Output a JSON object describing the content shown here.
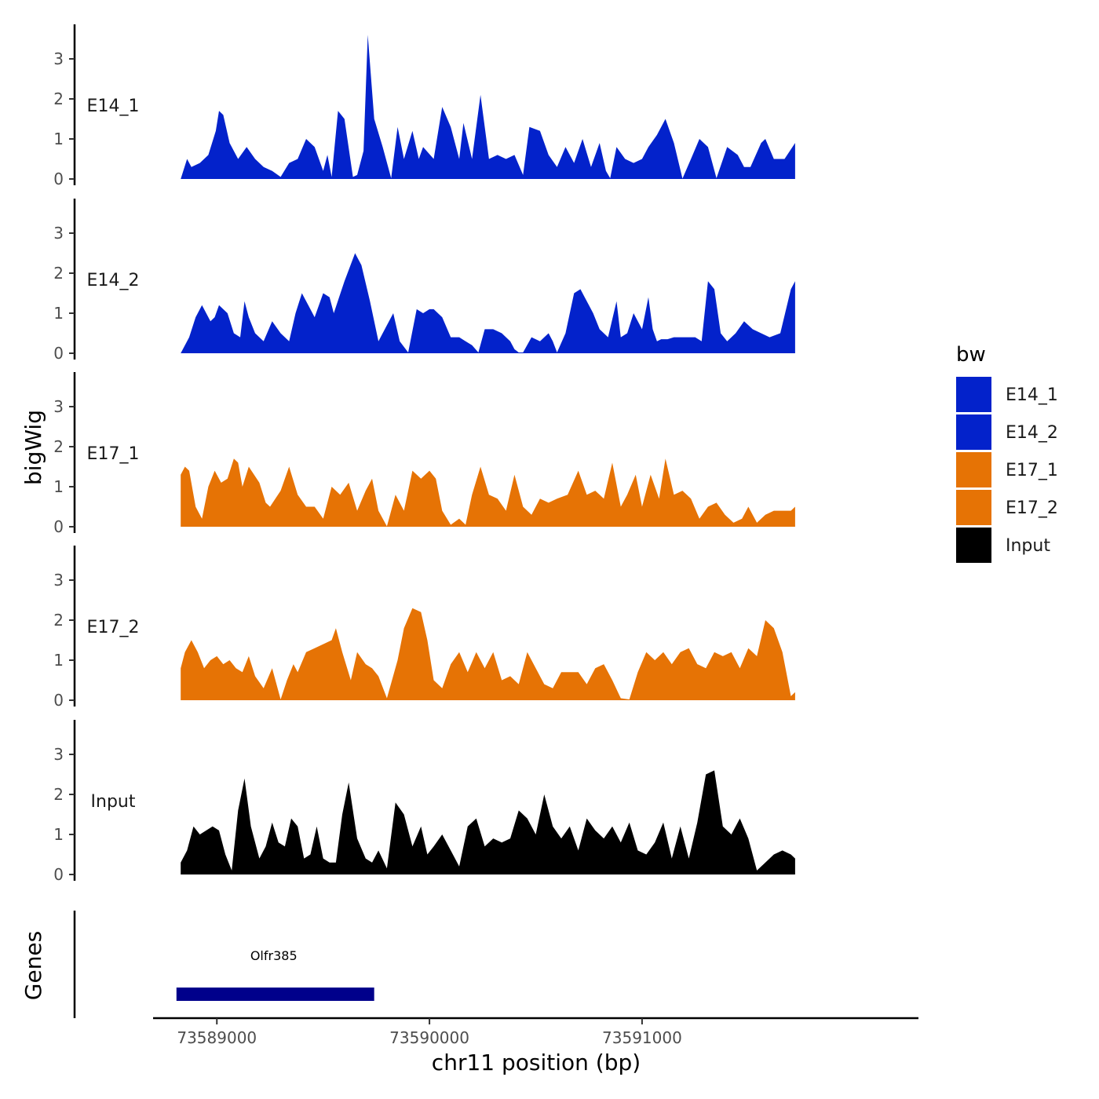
{
  "chart_data": {
    "type": "area",
    "title": "",
    "xlabel": "chr11 position (bp)",
    "ylabel": "bigWig",
    "gene_panel_label": "Genes",
    "xlim": [
      73588700,
      73592300
    ],
    "ylim": [
      0,
      3.8
    ],
    "x_ticks": [
      73589000,
      73590000,
      73591000
    ],
    "x_tick_labels": [
      "73589000",
      "73590000",
      "73591000"
    ],
    "y_ticks": [
      0,
      1,
      2,
      3
    ],
    "y_tick_labels": [
      "0",
      "1",
      "2",
      "3"
    ],
    "legend": {
      "title": "bw",
      "entries": [
        {
          "label": "E14_1",
          "color": "#0322cb"
        },
        {
          "label": "E14_2",
          "color": "#0322cb"
        },
        {
          "label": "E17_1",
          "color": "#e67305"
        },
        {
          "label": "E17_2",
          "color": "#e67305"
        },
        {
          "label": "Input",
          "color": "#000000"
        }
      ]
    },
    "series": [
      {
        "name": "E14_1",
        "color": "#0322cb",
        "x": [
          73588830,
          73588860,
          73588880,
          73588920,
          73588960,
          73588995,
          73589010,
          73589030,
          73589060,
          73589100,
          73589140,
          73589180,
          73589220,
          73589260,
          73589300,
          73589340,
          73589380,
          73589420,
          73589460,
          73589500,
          73589520,
          73589540,
          73589570,
          73589600,
          73589640,
          73589660,
          73589690,
          73589710,
          73589740,
          73589780,
          73589820,
          73589850,
          73589880,
          73589920,
          73589950,
          73589970,
          73590020,
          73590060,
          73590100,
          73590140,
          73590160,
          73590200,
          73590240,
          73590280,
          73590320,
          73590360,
          73590400,
          73590440,
          73590470,
          73590520,
          73590560,
          73590600,
          73590640,
          73590680,
          73590720,
          73590760,
          73590800,
          73590830,
          73590850,
          73590880,
          73590920,
          73590960,
          73591000,
          73591030,
          73591070,
          73591110,
          73591150,
          73591190,
          73591230,
          73591270,
          73591310,
          73591350,
          73591400,
          73591450,
          73591480,
          73591510,
          73591560,
          73591580,
          73591620,
          73591670,
          73591720
        ],
        "values": [
          0,
          0.5,
          0.3,
          0.4,
          0.6,
          1.2,
          1.7,
          1.6,
          0.9,
          0.5,
          0.8,
          0.5,
          0.3,
          0.2,
          0.05,
          0.4,
          0.5,
          1.0,
          0.8,
          0.2,
          0.6,
          0.05,
          1.7,
          1.5,
          0.05,
          0.1,
          0.7,
          3.6,
          1.5,
          0.8,
          0.02,
          1.3,
          0.5,
          1.2,
          0.5,
          0.8,
          0.5,
          1.8,
          1.3,
          0.5,
          1.4,
          0.5,
          2.1,
          0.5,
          0.6,
          0.5,
          0.6,
          0.1,
          1.3,
          1.2,
          0.6,
          0.3,
          0.8,
          0.4,
          1.0,
          0.3,
          0.9,
          0.2,
          0.02,
          0.8,
          0.5,
          0.4,
          0.5,
          0.8,
          1.1,
          1.5,
          0.9,
          0.01,
          0.5,
          1.0,
          0.8,
          0.02,
          0.8,
          0.6,
          0.3,
          0.3,
          0.9,
          1.0,
          0.5,
          0.5,
          0.9
        ]
      },
      {
        "name": "E14_2",
        "color": "#0322cb",
        "x": [
          73588830,
          73588870,
          73588900,
          73588930,
          73588950,
          73588970,
          73588990,
          73589010,
          73589050,
          73589080,
          73589110,
          73589130,
          73589150,
          73589180,
          73589220,
          73589260,
          73589300,
          73589340,
          73589370,
          73589400,
          73589430,
          73589460,
          73589500,
          73589530,
          73589550,
          73589600,
          73589650,
          73589680,
          73589720,
          73589760,
          73589800,
          73589830,
          73589860,
          73589900,
          73589940,
          73589970,
          73590000,
          73590020,
          73590060,
          73590100,
          73590140,
          73590170,
          73590200,
          73590230,
          73590260,
          73590300,
          73590340,
          73590380,
          73590400,
          73590420,
          73590440,
          73590480,
          73590520,
          73590560,
          73590580,
          73590600,
          73590640,
          73590680,
          73590710,
          73590730,
          73590750,
          73590770,
          73590800,
          73590840,
          73590880,
          73590900,
          73590930,
          73590960,
          73591000,
          73591030,
          73591050,
          73591070,
          73591090,
          73591120,
          73591150,
          73591200,
          73591250,
          73591280,
          73591310,
          73591340,
          73591370,
          73591400,
          73591440,
          73591480,
          73591520,
          73591560,
          73591600,
          73591650,
          73591700,
          73591720
        ],
        "values": [
          0,
          0.4,
          0.9,
          1.2,
          1.0,
          0.8,
          0.9,
          1.2,
          1.0,
          0.5,
          0.4,
          1.3,
          0.9,
          0.5,
          0.3,
          0.8,
          0.5,
          0.3,
          1.0,
          1.5,
          1.2,
          0.9,
          1.5,
          1.4,
          1.0,
          1.8,
          2.5,
          2.2,
          1.3,
          0.3,
          0.7,
          1.0,
          0.3,
          0.02,
          1.1,
          1.0,
          1.1,
          1.1,
          0.9,
          0.4,
          0.4,
          0.3,
          0.2,
          0.02,
          0.6,
          0.6,
          0.5,
          0.3,
          0.1,
          0.02,
          0.02,
          0.4,
          0.3,
          0.5,
          0.3,
          0.02,
          0.5,
          1.5,
          1.6,
          1.4,
          1.2,
          1.0,
          0.6,
          0.4,
          1.3,
          0.4,
          0.5,
          1.0,
          0.6,
          1.4,
          0.6,
          0.3,
          0.35,
          0.35,
          0.4,
          0.4,
          0.4,
          0.3,
          1.8,
          1.6,
          0.5,
          0.3,
          0.5,
          0.8,
          0.6,
          0.5,
          0.4,
          0.5,
          1.6,
          1.8
        ]
      },
      {
        "name": "E17_1",
        "color": "#e67305",
        "x": [
          73588830,
          73588850,
          73588870,
          73588900,
          73588930,
          73588960,
          73588990,
          73589020,
          73589050,
          73589080,
          73589100,
          73589120,
          73589150,
          73589200,
          73589230,
          73589250,
          73589300,
          73589340,
          73589380,
          73589420,
          73589460,
          73589500,
          73589540,
          73589580,
          73589620,
          73589660,
          73589700,
          73589730,
          73589760,
          73589800,
          73589840,
          73589880,
          73589920,
          73589960,
          73590000,
          73590030,
          73590060,
          73590100,
          73590140,
          73590170,
          73590200,
          73590240,
          73590280,
          73590320,
          73590360,
          73590400,
          73590440,
          73590480,
          73590520,
          73590560,
          73590600,
          73590650,
          73590700,
          73590740,
          73590780,
          73590820,
          73590860,
          73590900,
          73590930,
          73590970,
          73591000,
          73591040,
          73591080,
          73591110,
          73591150,
          73591190,
          73591230,
          73591270,
          73591310,
          73591350,
          73591390,
          73591430,
          73591470,
          73591500,
          73591540,
          73591580,
          73591620,
          73591660,
          73591700,
          73591720
        ],
        "values": [
          1.3,
          1.5,
          1.4,
          0.5,
          0.2,
          1.0,
          1.4,
          1.1,
          1.2,
          1.7,
          1.6,
          1.0,
          1.5,
          1.1,
          0.6,
          0.5,
          0.9,
          1.5,
          0.8,
          0.5,
          0.5,
          0.2,
          1.0,
          0.8,
          1.1,
          0.4,
          0.9,
          1.2,
          0.4,
          0.01,
          0.8,
          0.4,
          1.4,
          1.2,
          1.4,
          1.2,
          0.4,
          0.05,
          0.2,
          0.05,
          0.8,
          1.5,
          0.8,
          0.7,
          0.4,
          1.3,
          0.5,
          0.3,
          0.7,
          0.6,
          0.7,
          0.8,
          1.4,
          0.8,
          0.9,
          0.7,
          1.6,
          0.5,
          0.8,
          1.3,
          0.5,
          1.3,
          0.7,
          1.7,
          0.8,
          0.9,
          0.7,
          0.2,
          0.5,
          0.6,
          0.3,
          0.1,
          0.2,
          0.5,
          0.1,
          0.3,
          0.4,
          0.4,
          0.4,
          0.5
        ]
      },
      {
        "name": "E17_2",
        "color": "#e67305",
        "x": [
          73588830,
          73588850,
          73588880,
          73588910,
          73588940,
          73588970,
          73589000,
          73589030,
          73589060,
          73589090,
          73589120,
          73589150,
          73589180,
          73589220,
          73589260,
          73589300,
          73589330,
          73589360,
          73589380,
          73589420,
          73589460,
          73589500,
          73589540,
          73589560,
          73589590,
          73589630,
          73589660,
          73589700,
          73589730,
          73589760,
          73589800,
          73589850,
          73589880,
          73589920,
          73589960,
          73589990,
          73590020,
          73590060,
          73590100,
          73590140,
          73590180,
          73590220,
          73590260,
          73590300,
          73590340,
          73590380,
          73590420,
          73590460,
          73590500,
          73590540,
          73590580,
          73590620,
          73590660,
          73590700,
          73590740,
          73590780,
          73590820,
          73590860,
          73590900,
          73590940,
          73590980,
          73591020,
          73591060,
          73591100,
          73591140,
          73591180,
          73591220,
          73591260,
          73591300,
          73591340,
          73591380,
          73591420,
          73591460,
          73591500,
          73591540,
          73591580,
          73591620,
          73591660,
          73591700,
          73591720
        ],
        "values": [
          0.8,
          1.2,
          1.5,
          1.2,
          0.8,
          1.0,
          1.1,
          0.9,
          1.0,
          0.8,
          0.7,
          1.1,
          0.6,
          0.3,
          0.8,
          0.02,
          0.5,
          0.9,
          0.7,
          1.2,
          1.3,
          1.4,
          1.5,
          1.8,
          1.2,
          0.5,
          1.2,
          0.9,
          0.8,
          0.6,
          0.05,
          1.0,
          1.8,
          2.3,
          2.2,
          1.5,
          0.5,
          0.3,
          0.9,
          1.2,
          0.7,
          1.2,
          0.8,
          1.2,
          0.5,
          0.6,
          0.4,
          1.2,
          0.8,
          0.4,
          0.3,
          0.7,
          0.7,
          0.7,
          0.4,
          0.8,
          0.9,
          0.5,
          0.05,
          0.02,
          0.7,
          1.2,
          1.0,
          1.2,
          0.9,
          1.2,
          1.3,
          0.9,
          0.8,
          1.2,
          1.1,
          1.2,
          0.8,
          1.3,
          1.1,
          2.0,
          1.8,
          1.2,
          0.1,
          0.2
        ]
      },
      {
        "name": "Input",
        "color": "#000000",
        "x": [
          73588830,
          73588860,
          73588890,
          73588920,
          73588950,
          73588980,
          73589010,
          73589040,
          73589070,
          73589100,
          73589130,
          73589160,
          73589200,
          73589230,
          73589260,
          73589290,
          73589320,
          73589350,
          73589380,
          73589410,
          73589440,
          73589470,
          73589500,
          73589530,
          73589560,
          73589590,
          73589620,
          73589660,
          73589700,
          73589730,
          73589760,
          73589800,
          73589840,
          73589880,
          73589920,
          73589960,
          73589990,
          73590020,
          73590060,
          73590100,
          73590140,
          73590180,
          73590220,
          73590260,
          73590300,
          73590340,
          73590380,
          73590420,
          73590460,
          73590500,
          73590540,
          73590580,
          73590620,
          73590660,
          73590700,
          73590740,
          73590780,
          73590820,
          73590860,
          73590900,
          73590940,
          73590980,
          73591020,
          73591060,
          73591100,
          73591140,
          73591180,
          73591220,
          73591260,
          73591300,
          73591340,
          73591380,
          73591420,
          73591460,
          73591500,
          73591540,
          73591580,
          73591620,
          73591660,
          73591700,
          73591720
        ],
        "values": [
          0.3,
          0.6,
          1.2,
          1.0,
          1.1,
          1.2,
          1.1,
          0.5,
          0.1,
          1.6,
          2.4,
          1.2,
          0.4,
          0.7,
          1.3,
          0.8,
          0.7,
          1.4,
          1.2,
          0.4,
          0.5,
          1.2,
          0.4,
          0.3,
          0.3,
          1.5,
          2.3,
          0.9,
          0.4,
          0.3,
          0.6,
          0.15,
          1.8,
          1.5,
          0.7,
          1.2,
          0.5,
          0.7,
          1.0,
          0.6,
          0.2,
          1.2,
          1.4,
          0.7,
          0.9,
          0.8,
          0.9,
          1.6,
          1.4,
          1.0,
          2.0,
          1.2,
          0.9,
          1.2,
          0.6,
          1.4,
          1.1,
          0.9,
          1.2,
          0.8,
          1.3,
          0.6,
          0.5,
          0.8,
          1.3,
          0.4,
          1.2,
          0.4,
          1.3,
          2.5,
          2.6,
          1.2,
          1.0,
          1.4,
          0.9,
          0.1,
          0.3,
          0.5,
          0.6,
          0.5,
          0.4
        ]
      }
    ],
    "genes": [
      {
        "name": "Olfr385",
        "start": 73588810,
        "end": 73589740,
        "color": "#00008b"
      }
    ]
  }
}
